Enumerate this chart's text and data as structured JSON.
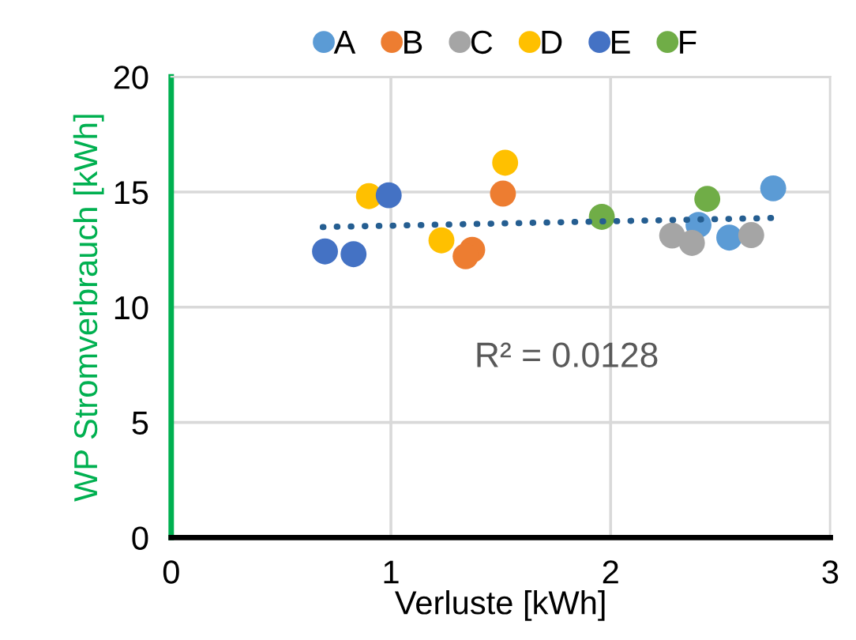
{
  "chart_data": {
    "type": "scatter",
    "xlabel": "Verluste [kWh]",
    "ylabel": "WP Stromverbrauch [kWh]",
    "xlim": [
      0,
      3
    ],
    "ylim": [
      0,
      20
    ],
    "xticks": [
      0,
      1,
      2,
      3
    ],
    "yticks": [
      0,
      5,
      10,
      15,
      20
    ],
    "grid": true,
    "legend": "top",
    "annotations": [
      "R² = 0.0128"
    ],
    "series": [
      {
        "name": "A",
        "color": "#5b9bd5",
        "marker": "circle",
        "x": [
          2.74,
          2.4,
          2.54
        ],
        "values": [
          15.16,
          13.57,
          13.02
        ]
      },
      {
        "name": "B",
        "color": "#ed7d31",
        "marker": "circle",
        "x": [
          1.51,
          1.37,
          1.34
        ],
        "values": [
          14.93,
          12.49,
          12.21
        ]
      },
      {
        "name": "C",
        "color": "#a5a5a5",
        "marker": "circle",
        "x": [
          2.28,
          2.37,
          2.64
        ],
        "values": [
          13.11,
          12.79,
          13.13
        ]
      },
      {
        "name": "D",
        "color": "#ffc000",
        "marker": "circle",
        "x": [
          0.9,
          1.52,
          1.23
        ],
        "values": [
          14.82,
          16.27,
          12.9
        ]
      },
      {
        "name": "E",
        "color": "#4472c4",
        "marker": "circle",
        "x": [
          0.99,
          0.7,
          0.83
        ],
        "values": [
          14.86,
          12.42,
          12.3
        ]
      },
      {
        "name": "F",
        "color": "#70ad47",
        "marker": "circle",
        "x": [
          1.96,
          2.44
        ],
        "values": [
          13.92,
          14.7
        ]
      },
      {
        "type": "line",
        "color": "#255e91",
        "line_style": "dotted",
        "x": [
          0.69,
          2.73
        ],
        "values": [
          13.48,
          13.87
        ]
      }
    ]
  }
}
